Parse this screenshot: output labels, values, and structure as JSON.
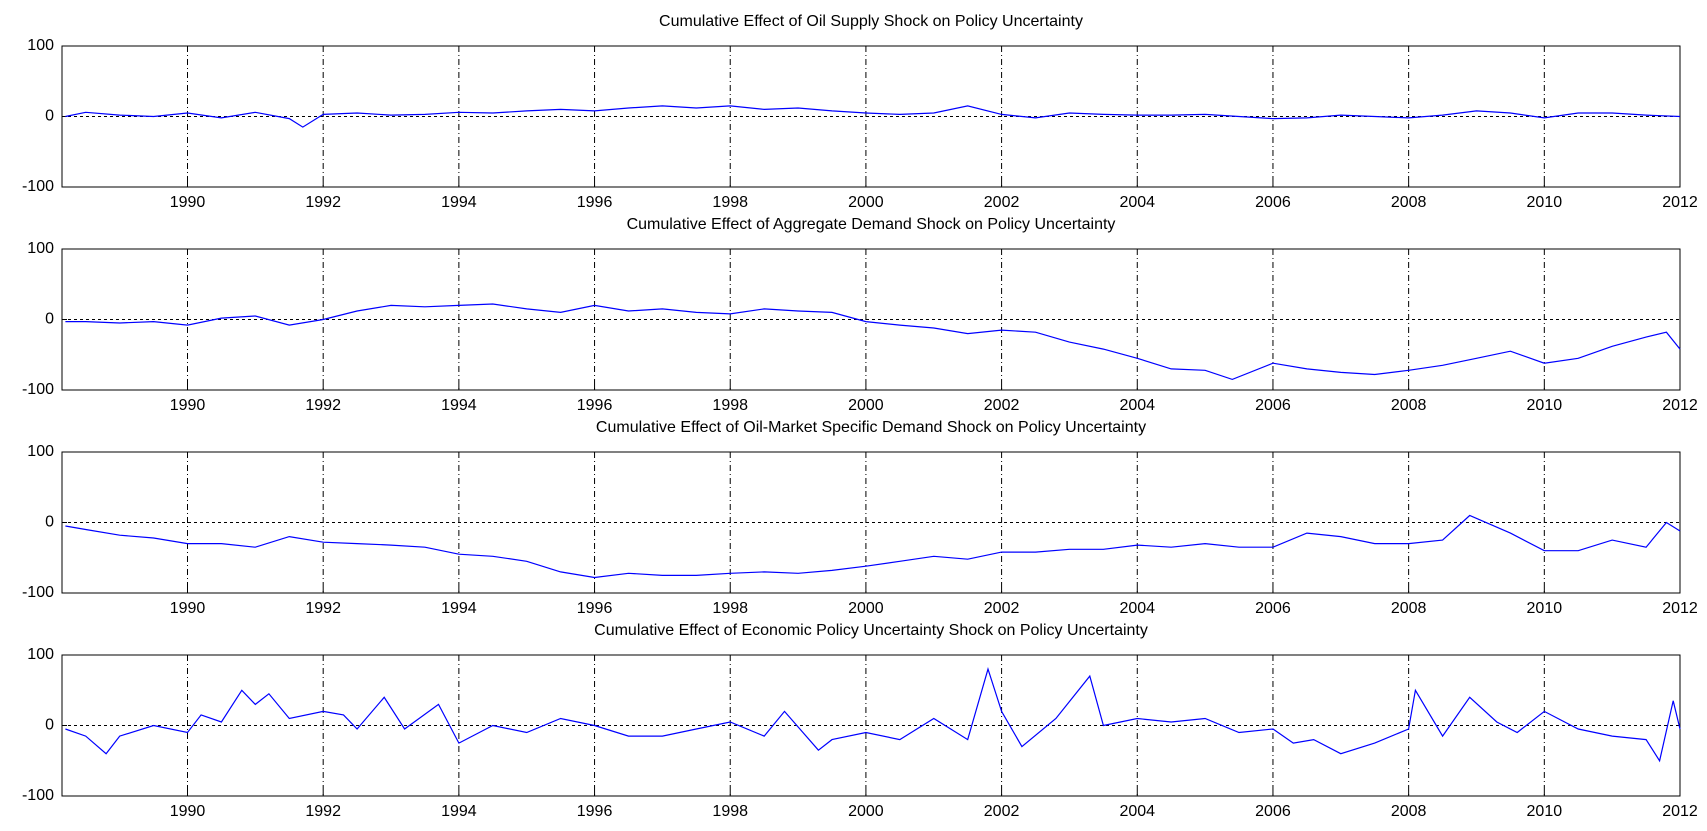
{
  "chart_data": [
    {
      "type": "line",
      "title": "Cumulative Effect of Oil Supply Shock on Policy Uncertainty",
      "xlim": [
        1988.15,
        2012
      ],
      "xticks": [
        1990,
        1992,
        1994,
        1996,
        1998,
        2000,
        2002,
        2004,
        2006,
        2008,
        2010,
        2012
      ],
      "ylim": [
        -100,
        100
      ],
      "yticks": [
        -100,
        0,
        100
      ],
      "grid": true,
      "hline": 0,
      "x": [
        1988.2,
        1988.5,
        1989,
        1989.5,
        1990,
        1990.5,
        1991,
        1991.5,
        1991.7,
        1992,
        1992.5,
        1993,
        1993.5,
        1994,
        1994.5,
        1995,
        1995.5,
        1996,
        1996.5,
        1997,
        1997.5,
        1998,
        1998.5,
        1999,
        1999.5,
        2000,
        2000.5,
        2001,
        2001.5,
        2002,
        2002.5,
        2003,
        2003.5,
        2004,
        2004.5,
        2005,
        2005.5,
        2006,
        2006.5,
        2007,
        2007.5,
        2008,
        2008.5,
        2009,
        2009.5,
        2010,
        2010.5,
        2011,
        2011.5,
        2012
      ],
      "series": [
        {
          "color": "#0000ff",
          "values": [
            0,
            6,
            2,
            0,
            5,
            -2,
            6,
            -3,
            -15,
            3,
            5,
            2,
            3,
            6,
            5,
            8,
            10,
            8,
            12,
            15,
            12,
            15,
            10,
            12,
            8,
            5,
            3,
            5,
            15,
            3,
            -2,
            5,
            3,
            2,
            2,
            3,
            0,
            -3,
            -2,
            2,
            0,
            -2,
            2,
            8,
            5,
            -2,
            5,
            5,
            2,
            0
          ]
        }
      ]
    },
    {
      "type": "line",
      "title": "Cumulative Effect of Aggregate Demand Shock on Policy Uncertainty",
      "xlim": [
        1988.15,
        2012
      ],
      "xticks": [
        1990,
        1992,
        1994,
        1996,
        1998,
        2000,
        2002,
        2004,
        2006,
        2008,
        2010,
        2012
      ],
      "ylim": [
        -100,
        100
      ],
      "yticks": [
        -100,
        0,
        100
      ],
      "grid": true,
      "hline": 0,
      "x": [
        1988.2,
        1988.5,
        1989,
        1989.5,
        1990,
        1990.5,
        1991,
        1991.5,
        1992,
        1992.5,
        1993,
        1993.5,
        1994,
        1994.5,
        1995,
        1995.5,
        1996,
        1996.5,
        1997,
        1997.5,
        1998,
        1998.5,
        1999,
        1999.5,
        2000,
        2000.5,
        2001,
        2001.5,
        2002,
        2002.5,
        2003,
        2003.5,
        2004,
        2004.5,
        2005,
        2005.4,
        2006,
        2006.5,
        2007,
        2007.5,
        2008,
        2008.5,
        2009,
        2009.5,
        2010,
        2010.5,
        2011,
        2011.5,
        2011.8,
        2012
      ],
      "series": [
        {
          "color": "#0000ff",
          "values": [
            -3,
            -3,
            -5,
            -3,
            -8,
            2,
            5,
            -8,
            0,
            12,
            20,
            18,
            20,
            22,
            15,
            10,
            20,
            12,
            15,
            10,
            8,
            15,
            12,
            10,
            -3,
            -8,
            -12,
            -20,
            -15,
            -18,
            -32,
            -42,
            -55,
            -70,
            -72,
            -85,
            -62,
            -70,
            -75,
            -78,
            -72,
            -65,
            -55,
            -45,
            -62,
            -55,
            -38,
            -25,
            -18,
            -42
          ]
        }
      ]
    },
    {
      "type": "line",
      "title": "Cumulative Effect of Oil-Market Specific Demand Shock on Policy Uncertainty",
      "xlim": [
        1988.15,
        2012
      ],
      "xticks": [
        1990,
        1992,
        1994,
        1996,
        1998,
        2000,
        2002,
        2004,
        2006,
        2008,
        2010,
        2012
      ],
      "ylim": [
        -100,
        100
      ],
      "yticks": [
        -100,
        0,
        100
      ],
      "grid": true,
      "hline": 0,
      "x": [
        1988.2,
        1988.5,
        1989,
        1989.5,
        1990,
        1990.5,
        1991,
        1991.5,
        1992,
        1992.5,
        1993,
        1993.5,
        1994,
        1994.5,
        1995,
        1995.5,
        1996,
        1996.5,
        1997,
        1997.5,
        1998,
        1998.5,
        1999,
        1999.5,
        2000,
        2000.5,
        2001,
        2001.5,
        2002,
        2002.5,
        2003,
        2003.5,
        2004,
        2004.5,
        2005,
        2005.5,
        2006,
        2006.5,
        2007,
        2007.5,
        2008,
        2008.5,
        2008.9,
        2009.5,
        2010,
        2010.5,
        2011,
        2011.5,
        2011.8,
        2012
      ],
      "series": [
        {
          "color": "#0000ff",
          "values": [
            -5,
            -10,
            -18,
            -22,
            -30,
            -30,
            -35,
            -20,
            -28,
            -30,
            -32,
            -35,
            -45,
            -48,
            -55,
            -70,
            -78,
            -72,
            -75,
            -75,
            -72,
            -70,
            -72,
            -68,
            -62,
            -55,
            -48,
            -52,
            -42,
            -42,
            -38,
            -38,
            -32,
            -35,
            -30,
            -35,
            -35,
            -15,
            -20,
            -30,
            -30,
            -25,
            10,
            -15,
            -40,
            -40,
            -25,
            -35,
            0,
            -12
          ]
        }
      ]
    },
    {
      "type": "line",
      "title": "Cumulative Effect of Economic Policy Uncertainty Shock on Policy Uncertainty",
      "xlim": [
        1988.15,
        2012
      ],
      "xticks": [
        1990,
        1992,
        1994,
        1996,
        1998,
        2000,
        2002,
        2004,
        2006,
        2008,
        2010,
        2012
      ],
      "ylim": [
        -100,
        100
      ],
      "yticks": [
        -100,
        0,
        100
      ],
      "grid": true,
      "hline": 0,
      "x": [
        1988.2,
        1988.5,
        1988.8,
        1989,
        1989.5,
        1990,
        1990.2,
        1990.5,
        1990.8,
        1991,
        1991.2,
        1991.5,
        1992,
        1992.3,
        1992.5,
        1992.9,
        1993.2,
        1993.7,
        1994,
        1994.5,
        1995,
        1995.5,
        1996,
        1996.5,
        1997,
        1997.5,
        1998,
        1998.5,
        1998.8,
        1999.3,
        1999.5,
        2000,
        2000.5,
        2001,
        2001.5,
        2001.8,
        2002,
        2002.3,
        2002.8,
        2003.3,
        2003.5,
        2004,
        2004.5,
        2005,
        2005.5,
        2006,
        2006.3,
        2006.6,
        2007,
        2007.5,
        2008,
        2008.1,
        2008.5,
        2008.9,
        2009.3,
        2009.6,
        2010,
        2010.5,
        2011,
        2011.5,
        2011.7,
        2011.9,
        2012
      ],
      "series": [
        {
          "color": "#0000ff",
          "values": [
            -5,
            -15,
            -40,
            -15,
            0,
            -10,
            15,
            5,
            50,
            30,
            45,
            10,
            20,
            15,
            -5,
            40,
            -5,
            30,
            -25,
            0,
            -10,
            10,
            0,
            -15,
            -15,
            -5,
            5,
            -15,
            20,
            -35,
            -20,
            -10,
            -20,
            10,
            -20,
            80,
            20,
            -30,
            10,
            70,
            0,
            10,
            5,
            10,
            -10,
            -5,
            -25,
            -20,
            -40,
            -25,
            -5,
            50,
            -15,
            40,
            5,
            -10,
            20,
            -5,
            -15,
            -20,
            -50,
            35,
            -5
          ]
        }
      ]
    }
  ]
}
